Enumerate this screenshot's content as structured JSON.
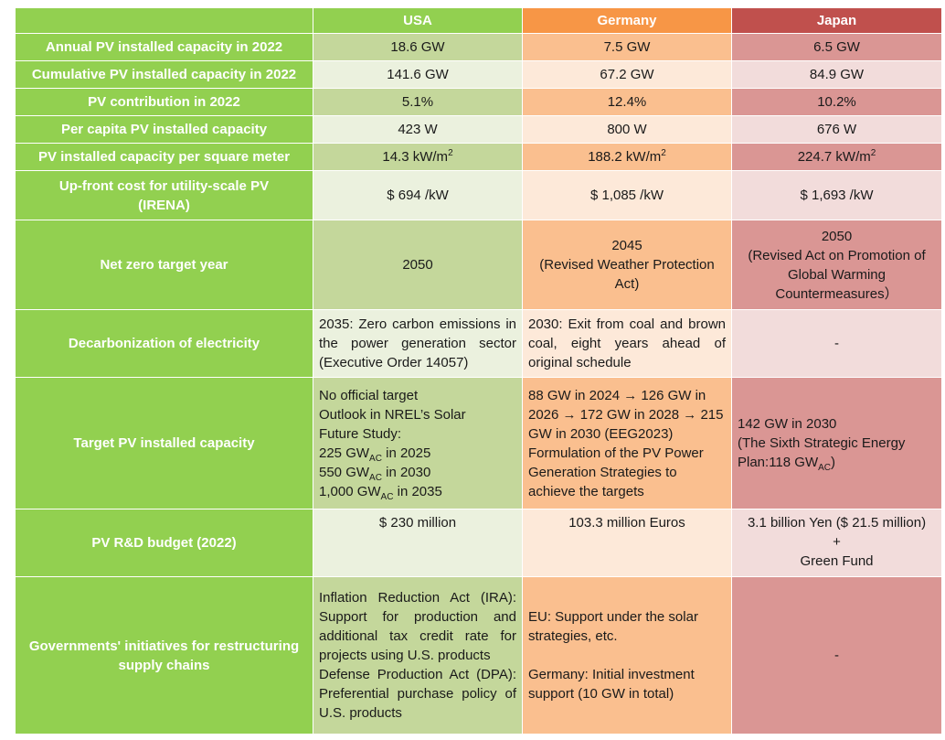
{
  "columns": {
    "usa": "USA",
    "germany": "Germany",
    "japan": "Japan"
  },
  "rows": {
    "annual": {
      "label": "Annual PV installed capacity in 2022",
      "usa": "18.6 GW",
      "germany": "7.5 GW",
      "japan": "6.5 GW"
    },
    "cumulative": {
      "label": "Cumulative PV installed capacity in 2022",
      "usa": "141.6 GW",
      "germany": "67.2 GW",
      "japan": "84.9 GW"
    },
    "contribution": {
      "label": "PV contribution in 2022",
      "usa": "5.1%",
      "germany": "12.4%",
      "japan": "10.2%"
    },
    "per_capita": {
      "label": "Per capita PV installed capacity",
      "usa": "423 W",
      "germany": "800 W",
      "japan": "676 W"
    },
    "per_sqm": {
      "label": "PV installed capacity per square meter",
      "usa": "14.3 kW/m",
      "germany": "188.2 kW/m",
      "japan": "224.7 kW/m",
      "superscript": "2"
    },
    "upfront": {
      "label_line1": "Up-front cost for utility-scale PV",
      "label_line2": "(IRENA)",
      "usa": "$ 694 /kW",
      "germany": "$ 1,085 /kW",
      "japan": "$ 1,693 /kW"
    },
    "net_zero": {
      "label": "Net zero target year",
      "usa": "2050",
      "germany_lines": [
        "2045",
        "(Revised Weather Protection",
        "Act)"
      ],
      "japan_lines": [
        "2050",
        "(Revised Act on Promotion of",
        "Global Warming",
        "Countermeasures）"
      ]
    },
    "decarbonization": {
      "label": "Decarbonization of electricity",
      "usa": "2035: Zero carbon emissions in the power generation sector (Executive Order 14057)",
      "germany": "2030: Exit from coal and brown coal, eight years ahead of original schedule",
      "japan": "-"
    },
    "target": {
      "label": "Target PV installed capacity",
      "usa_line1": "No official target",
      "usa_line2": "Outlook in NREL’s Solar",
      "usa_line3": "Future Study:",
      "usa_ac1_pre": "225 GW",
      "usa_ac1_post": " in 2025",
      "usa_ac2_pre": "550 GW",
      "usa_ac2_post": " in 2030",
      "usa_ac3_pre": "1,000 GW",
      "usa_ac3_post": " in 2035",
      "ac_sub": "AC",
      "germany_plan": "88 GW in 2024 → 126 GW in 2026 → 172 GW in 2028 → 215 GW in 2030 (EEG2023)",
      "germany_strategy": "Formulation of the PV Power Generation Strategies to achieve the targets",
      "japan_line1": "142 GW in 2030",
      "japan_line2": "(The Sixth Strategic Energy",
      "japan_line3_pre": "Plan:118 GW",
      "japan_line3_post": ")"
    },
    "rd_budget": {
      "label": "PV R&D budget (2022)",
      "usa": "$ 230 million",
      "germany": "103.3 million Euros",
      "japan_lines": [
        "3.1 billion Yen ($ 21.5 million)",
        "+",
        "Green Fund"
      ]
    },
    "supply_chain": {
      "label": "Governments' initiatives for restructuring supply chains",
      "usa_ira": "Inflation Reduction Act (IRA): Support for production and additional tax credit rate for projects using U.S. products",
      "usa_dpa": "Defense Production Act (DPA): Preferential purchase policy of U.S. products",
      "germany_eu": "EU: Support under the solar strategies, etc.",
      "germany_de": "Germany: Initial investment support (10 GW in total)",
      "japan": "-"
    }
  }
}
